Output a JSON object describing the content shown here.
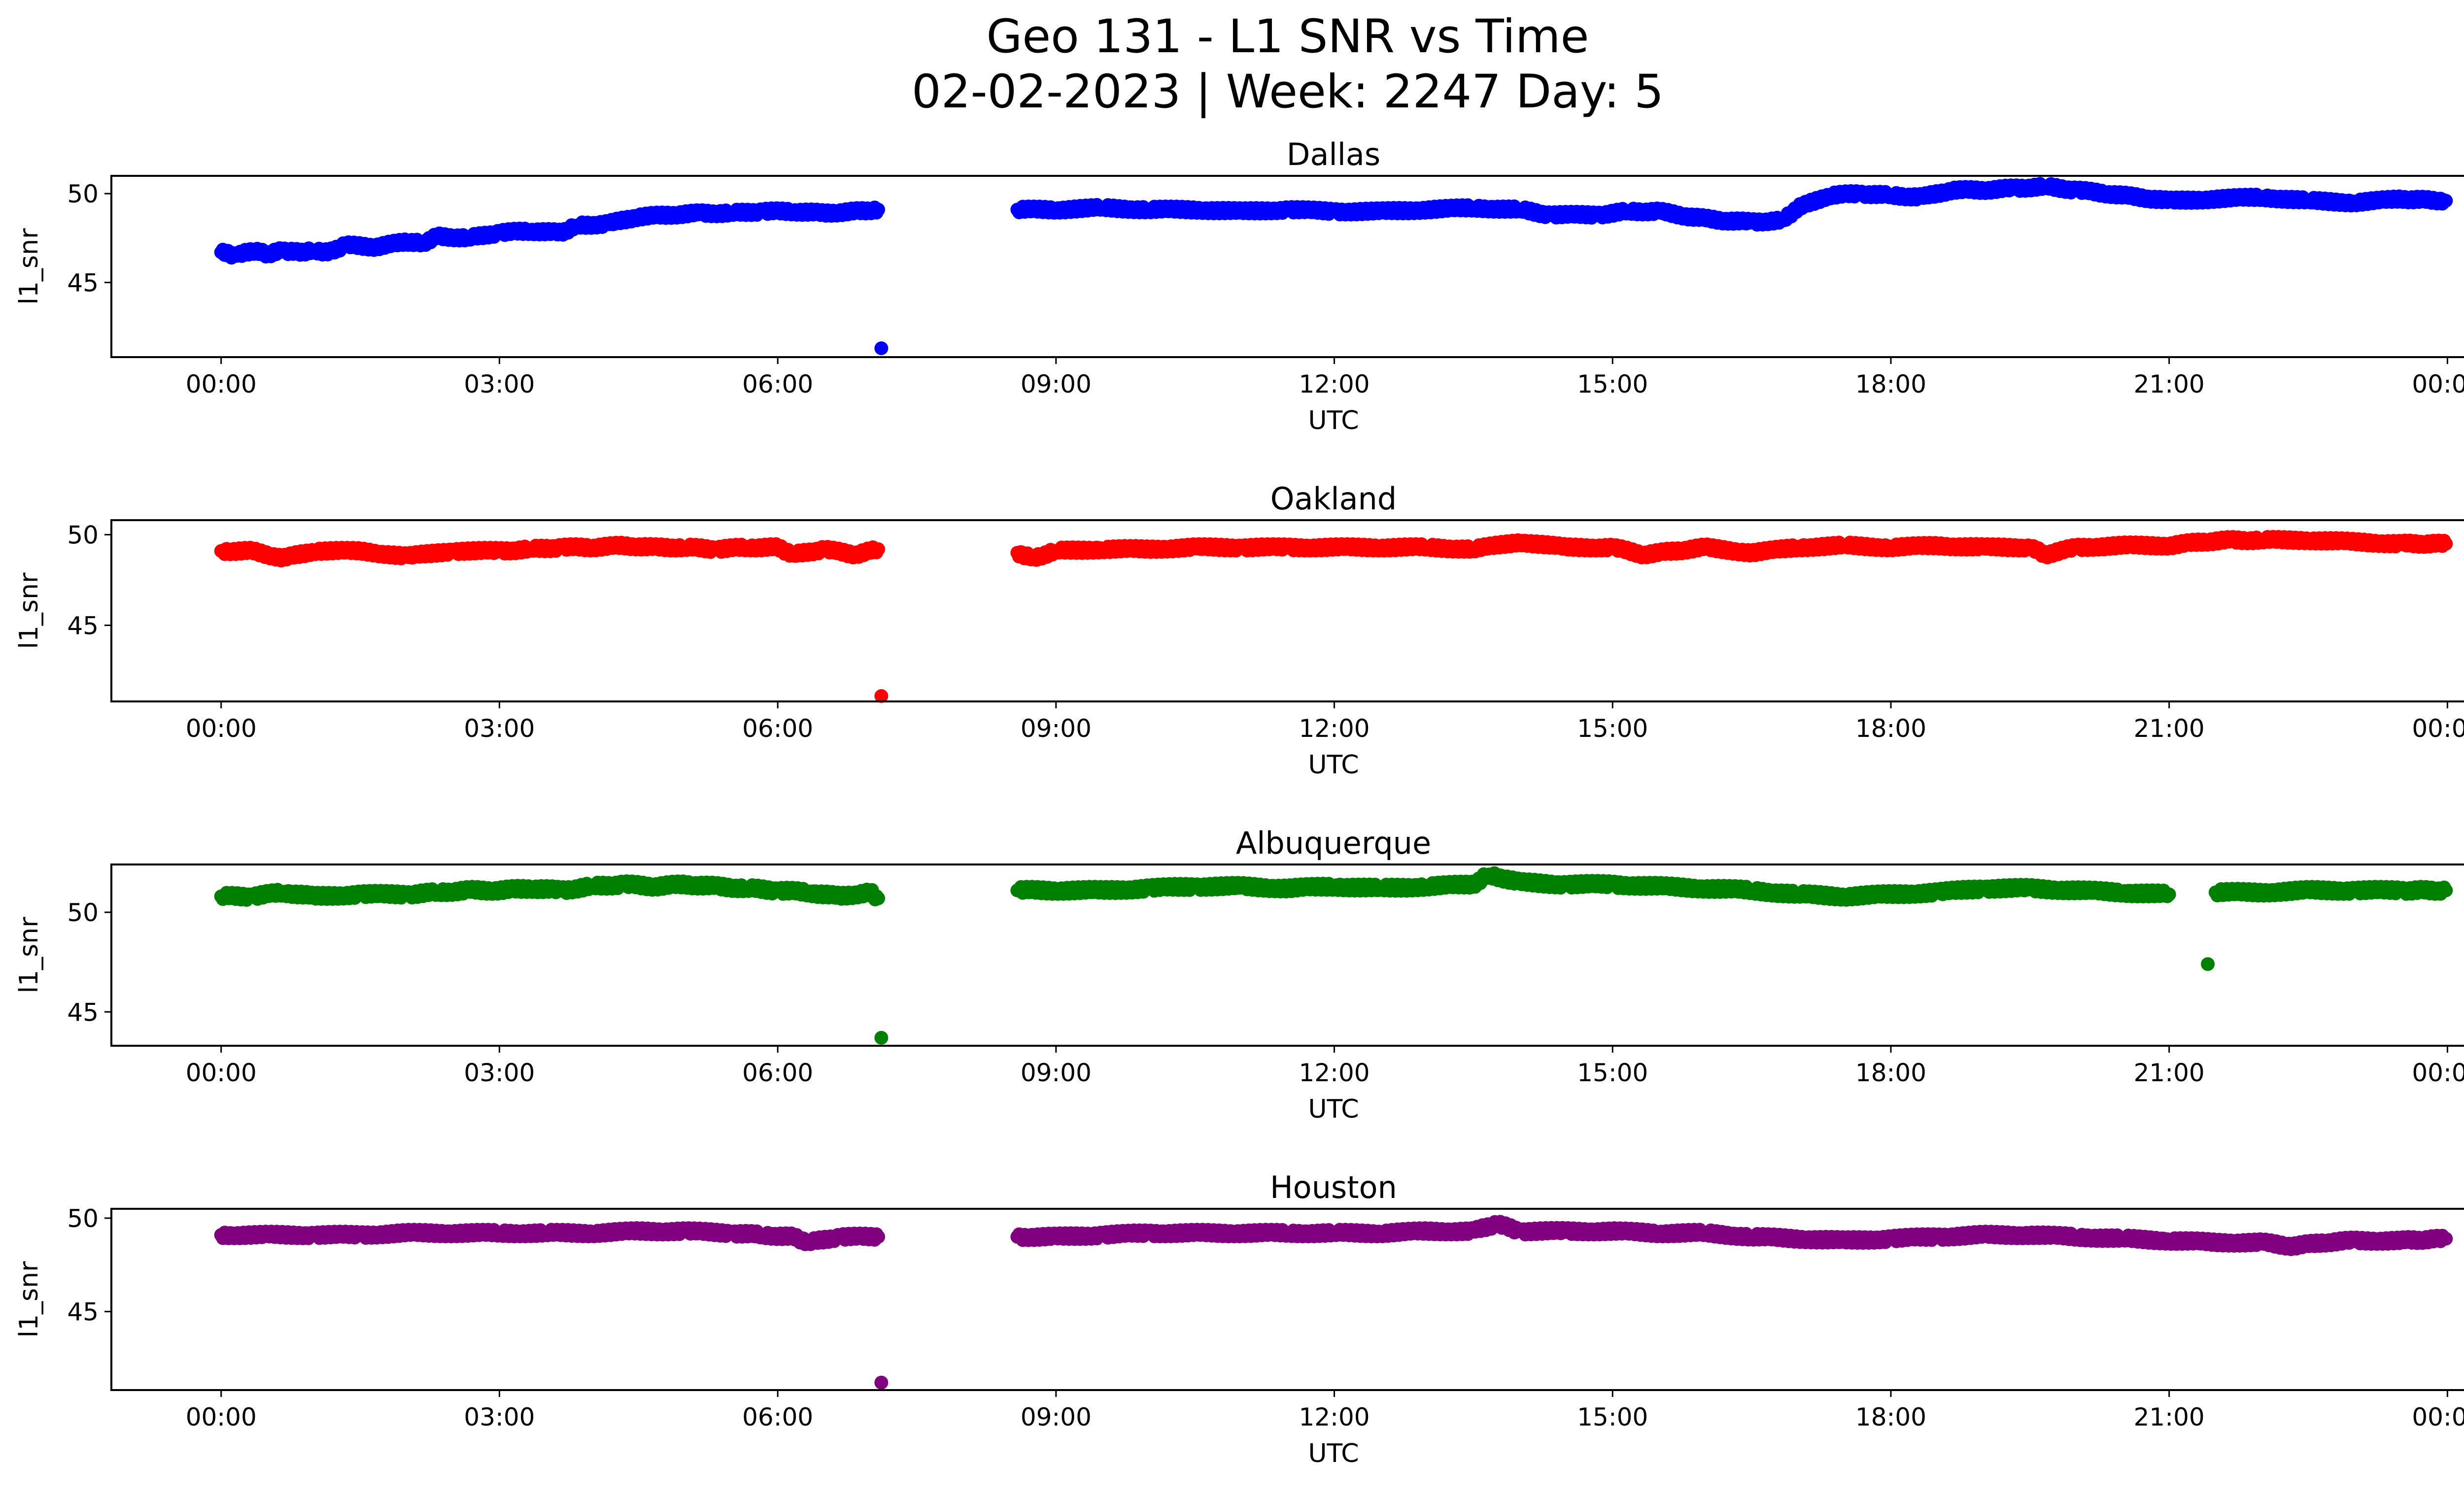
{
  "figure": {
    "title_line1": "Geo 131 - L1 SNR vs Time",
    "title_line2": "02-02-2023 | Week: 2247 Day: 5"
  },
  "chart_data": [
    {
      "type": "scatter",
      "title": "Dallas",
      "xlabel": "UTC",
      "ylabel": "l1_snr",
      "color": "#0000ff",
      "x_ticks": [
        "00:00",
        "03:00",
        "06:00",
        "09:00",
        "12:00",
        "15:00",
        "18:00",
        "21:00",
        "00:00"
      ],
      "y_ticks": [
        45,
        50
      ],
      "xlim": [
        "2023-02-01T22:49",
        "2023-02-03T01:10"
      ],
      "ylim": [
        40.8,
        51.0
      ],
      "series": [
        {
          "points": [
            [
              "00:00",
              46.7
            ],
            [
              "00:10",
              46.5
            ],
            [
              "00:20",
              46.8
            ],
            [
              "00:30",
              46.6
            ],
            [
              "00:40",
              46.8
            ],
            [
              "00:50",
              46.7
            ],
            [
              "01:00",
              46.8
            ],
            [
              "01:10",
              46.7
            ],
            [
              "01:20",
              47.1
            ],
            [
              "01:40",
              47.0
            ],
            [
              "02:00",
              47.3
            ],
            [
              "02:10",
              47.2
            ],
            [
              "02:20",
              47.6
            ],
            [
              "02:40",
              47.5
            ],
            [
              "03:00",
              47.8
            ],
            [
              "03:20",
              47.9
            ],
            [
              "03:40",
              47.8
            ],
            [
              "03:50",
              48.2
            ],
            [
              "04:10",
              48.3
            ],
            [
              "04:30",
              48.7
            ],
            [
              "04:50",
              48.8
            ],
            [
              "05:10",
              48.9
            ],
            [
              "05:30",
              48.9
            ],
            [
              "05:50",
              49.0
            ],
            [
              "06:10",
              49.0
            ],
            [
              "06:30",
              48.9
            ],
            [
              "06:50",
              49.0
            ],
            [
              "07:05",
              49.1
            ],
            [
              "07:07",
              41.3
            ],
            [
              "08:35",
              49.1
            ],
            [
              "09:00",
              49.1
            ],
            [
              "09:30",
              49.2
            ],
            [
              "10:00",
              49.1
            ],
            [
              "10:30",
              49.1
            ],
            [
              "11:00",
              49.0
            ],
            [
              "11:30",
              49.1
            ],
            [
              "12:00",
              49.0
            ],
            [
              "12:30",
              49.0
            ],
            [
              "13:00",
              49.1
            ],
            [
              "13:30",
              49.2
            ],
            [
              "14:00",
              49.1
            ],
            [
              "14:20",
              48.8
            ],
            [
              "14:50",
              48.8
            ],
            [
              "15:10",
              49.0
            ],
            [
              "15:30",
              49.0
            ],
            [
              "15:50",
              48.7
            ],
            [
              "16:10",
              48.5
            ],
            [
              "16:30",
              48.4
            ],
            [
              "16:50",
              48.5
            ],
            [
              "17:00",
              49.2
            ],
            [
              "17:20",
              49.9
            ],
            [
              "17:40",
              50.0
            ],
            [
              "18:00",
              49.9
            ],
            [
              "18:20",
              49.8
            ],
            [
              "18:40",
              50.2
            ],
            [
              "19:00",
              50.2
            ],
            [
              "19:20",
              50.3
            ],
            [
              "19:40",
              50.4
            ],
            [
              "20:00",
              50.2
            ],
            [
              "20:20",
              50.0
            ],
            [
              "20:40",
              49.8
            ],
            [
              "21:00",
              49.6
            ],
            [
              "21:30",
              49.7
            ],
            [
              "22:00",
              49.8
            ],
            [
              "22:30",
              49.6
            ],
            [
              "23:00",
              49.5
            ],
            [
              "23:30",
              49.7
            ],
            [
              "23:59",
              49.6
            ]
          ]
        }
      ]
    },
    {
      "type": "scatter",
      "title": "Oakland",
      "xlabel": "UTC",
      "ylabel": "l1_snr",
      "color": "#ff0000",
      "x_ticks": [
        "00:00",
        "03:00",
        "06:00",
        "09:00",
        "12:00",
        "15:00",
        "18:00",
        "21:00",
        "00:00"
      ],
      "y_ticks": [
        45,
        50
      ],
      "xlim": [
        "2023-02-01T22:49",
        "2023-02-03T01:10"
      ],
      "ylim": [
        40.8,
        50.8
      ],
      "series": [
        {
          "points": [
            [
              "00:00",
              49.1
            ],
            [
              "00:20",
              49.1
            ],
            [
              "00:40",
              48.7
            ],
            [
              "01:00",
              49.1
            ],
            [
              "01:30",
              49.1
            ],
            [
              "02:00",
              48.8
            ],
            [
              "02:30",
              49.1
            ],
            [
              "03:00",
              49.1
            ],
            [
              "03:20",
              49.2
            ],
            [
              "03:40",
              49.3
            ],
            [
              "04:00",
              49.3
            ],
            [
              "04:20",
              49.4
            ],
            [
              "04:40",
              49.3
            ],
            [
              "05:00",
              49.3
            ],
            [
              "05:20",
              49.2
            ],
            [
              "05:40",
              49.3
            ],
            [
              "06:00",
              49.3
            ],
            [
              "06:10",
              48.9
            ],
            [
              "06:30",
              49.2
            ],
            [
              "06:50",
              48.9
            ],
            [
              "07:05",
              49.2
            ],
            [
              "07:07",
              41.1
            ],
            [
              "08:35",
              49.0
            ],
            [
              "08:45",
              48.7
            ],
            [
              "09:00",
              49.1
            ],
            [
              "09:30",
              49.2
            ],
            [
              "10:00",
              49.2
            ],
            [
              "10:30",
              49.3
            ],
            [
              "11:00",
              49.3
            ],
            [
              "11:30",
              49.3
            ],
            [
              "12:00",
              49.3
            ],
            [
              "12:30",
              49.3
            ],
            [
              "13:00",
              49.3
            ],
            [
              "13:30",
              49.2
            ],
            [
              "14:00",
              49.6
            ],
            [
              "14:30",
              49.3
            ],
            [
              "15:00",
              49.3
            ],
            [
              "15:20",
              48.9
            ],
            [
              "15:40",
              49.1
            ],
            [
              "16:00",
              49.3
            ],
            [
              "16:30",
              49.0
            ],
            [
              "17:00",
              49.3
            ],
            [
              "17:30",
              49.4
            ],
            [
              "18:00",
              49.3
            ],
            [
              "18:30",
              49.4
            ],
            [
              "19:00",
              49.3
            ],
            [
              "19:30",
              49.3
            ],
            [
              "19:40",
              48.9
            ],
            [
              "20:00",
              49.3
            ],
            [
              "20:30",
              49.4
            ],
            [
              "21:00",
              49.4
            ],
            [
              "21:20",
              49.6
            ],
            [
              "21:40",
              49.7
            ],
            [
              "22:00",
              49.7
            ],
            [
              "22:30",
              49.7
            ],
            [
              "23:00",
              49.6
            ],
            [
              "23:30",
              49.5
            ],
            [
              "23:59",
              49.5
            ]
          ]
        }
      ]
    },
    {
      "type": "scatter",
      "title": "Albuquerque",
      "xlabel": "UTC",
      "ylabel": "l1_snr",
      "color": "#008000",
      "x_ticks": [
        "00:00",
        "03:00",
        "06:00",
        "09:00",
        "12:00",
        "15:00",
        "18:00",
        "21:00",
        "00:00"
      ],
      "y_ticks": [
        45,
        50
      ],
      "xlim": [
        "2023-02-01T22:49",
        "2023-02-03T01:10"
      ],
      "ylim": [
        43.3,
        52.4
      ],
      "series": [
        {
          "points": [
            [
              "00:00",
              50.8
            ],
            [
              "00:20",
              50.8
            ],
            [
              "00:40",
              51.0
            ],
            [
              "01:00",
              50.8
            ],
            [
              "01:30",
              50.9
            ],
            [
              "02:00",
              50.9
            ],
            [
              "02:20",
              51.0
            ],
            [
              "02:40",
              51.1
            ],
            [
              "03:00",
              51.1
            ],
            [
              "03:20",
              51.2
            ],
            [
              "03:40",
              51.1
            ],
            [
              "04:00",
              51.3
            ],
            [
              "04:20",
              51.4
            ],
            [
              "04:40",
              51.3
            ],
            [
              "05:00",
              51.4
            ],
            [
              "05:20",
              51.3
            ],
            [
              "05:40",
              51.2
            ],
            [
              "06:00",
              51.1
            ],
            [
              "06:20",
              51.0
            ],
            [
              "06:40",
              50.8
            ],
            [
              "07:00",
              51.0
            ],
            [
              "07:05",
              50.7
            ],
            [
              "07:07",
              43.7
            ],
            [
              "08:35",
              51.1
            ],
            [
              "09:00",
              51.1
            ],
            [
              "09:30",
              51.1
            ],
            [
              "10:00",
              51.2
            ],
            [
              "10:30",
              51.3
            ],
            [
              "11:00",
              51.3
            ],
            [
              "11:30",
              51.2
            ],
            [
              "12:00",
              51.3
            ],
            [
              "12:30",
              51.2
            ],
            [
              "13:00",
              51.3
            ],
            [
              "13:30",
              51.4
            ],
            [
              "13:40",
              51.9
            ],
            [
              "14:00",
              51.5
            ],
            [
              "14:30",
              51.4
            ],
            [
              "15:00",
              51.4
            ],
            [
              "15:30",
              51.3
            ],
            [
              "16:00",
              51.2
            ],
            [
              "16:30",
              51.1
            ],
            [
              "17:00",
              50.9
            ],
            [
              "17:30",
              50.8
            ],
            [
              "18:00",
              50.9
            ],
            [
              "18:30",
              51.0
            ],
            [
              "19:00",
              51.2
            ],
            [
              "19:30",
              51.2
            ],
            [
              "20:00",
              51.1
            ],
            [
              "20:30",
              51.0
            ],
            [
              "21:00",
              50.9
            ],
            [
              "21:25",
              47.4
            ],
            [
              "21:30",
              51.0
            ],
            [
              "22:00",
              51.0
            ],
            [
              "22:30",
              51.1
            ],
            [
              "23:00",
              51.1
            ],
            [
              "23:30",
              51.1
            ],
            [
              "23:59",
              51.1
            ]
          ]
        }
      ]
    },
    {
      "type": "scatter",
      "title": "Houston",
      "xlabel": "UTC",
      "ylabel": "l1_snr",
      "color": "#800080",
      "x_ticks": [
        "00:00",
        "03:00",
        "06:00",
        "09:00",
        "12:00",
        "15:00",
        "18:00",
        "21:00",
        "00:00"
      ],
      "y_ticks": [
        45,
        50
      ],
      "xlim": [
        "2023-02-01T22:49",
        "2023-02-03T01:10"
      ],
      "ylim": [
        40.8,
        50.5
      ],
      "series": [
        {
          "points": [
            [
              "00:00",
              49.1
            ],
            [
              "00:30",
              49.1
            ],
            [
              "01:00",
              49.1
            ],
            [
              "01:30",
              49.1
            ],
            [
              "02:00",
              49.2
            ],
            [
              "02:30",
              49.2
            ],
            [
              "03:00",
              49.2
            ],
            [
              "03:30",
              49.2
            ],
            [
              "04:00",
              49.2
            ],
            [
              "04:30",
              49.3
            ],
            [
              "05:00",
              49.3
            ],
            [
              "05:30",
              49.2
            ],
            [
              "05:50",
              49.1
            ],
            [
              "06:10",
              49.0
            ],
            [
              "06:20",
              48.7
            ],
            [
              "06:40",
              49.0
            ],
            [
              "07:05",
              49.0
            ],
            [
              "07:07",
              41.2
            ],
            [
              "08:35",
              49.0
            ],
            [
              "09:00",
              49.0
            ],
            [
              "09:30",
              49.1
            ],
            [
              "10:00",
              49.2
            ],
            [
              "10:30",
              49.2
            ],
            [
              "11:00",
              49.2
            ],
            [
              "11:30",
              49.2
            ],
            [
              "12:00",
              49.2
            ],
            [
              "12:30",
              49.2
            ],
            [
              "13:00",
              49.3
            ],
            [
              "13:30",
              49.3
            ],
            [
              "13:45",
              49.7
            ],
            [
              "14:00",
              49.3
            ],
            [
              "14:30",
              49.3
            ],
            [
              "15:00",
              49.3
            ],
            [
              "15:30",
              49.2
            ],
            [
              "16:00",
              49.2
            ],
            [
              "16:30",
              49.0
            ],
            [
              "17:00",
              48.9
            ],
            [
              "17:30",
              48.8
            ],
            [
              "18:00",
              48.9
            ],
            [
              "18:30",
              49.0
            ],
            [
              "19:00",
              49.1
            ],
            [
              "19:30",
              49.1
            ],
            [
              "20:00",
              49.0
            ],
            [
              "20:30",
              48.9
            ],
            [
              "21:00",
              48.8
            ],
            [
              "21:30",
              48.7
            ],
            [
              "22:00",
              48.7
            ],
            [
              "22:20",
              48.5
            ],
            [
              "22:40",
              48.7
            ],
            [
              "23:00",
              48.8
            ],
            [
              "23:30",
              48.8
            ],
            [
              "23:59",
              48.9
            ]
          ]
        }
      ]
    }
  ]
}
